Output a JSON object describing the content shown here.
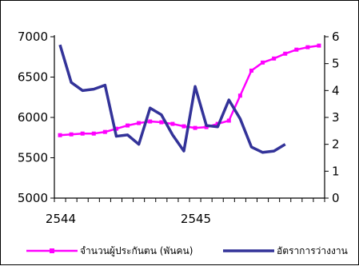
{
  "chart_data": {
    "type": "line",
    "title": "",
    "xlabel": "",
    "x_tick_labels": [
      {
        "label": "2544",
        "index": 0
      },
      {
        "label": "2545",
        "index": 12
      }
    ],
    "point_count": 24,
    "left_axis": {
      "label": "",
      "ylim": [
        5000,
        7000
      ],
      "ticks": [
        5000,
        5500,
        6000,
        6500,
        7000
      ]
    },
    "right_axis": {
      "label": "",
      "ylim": [
        0,
        6
      ],
      "ticks": [
        0,
        1,
        2,
        3,
        4,
        5,
        6
      ]
    },
    "grid": false,
    "legend_position": "bottom",
    "series": [
      {
        "name": "จำนวนผู้ประกันตน (พันคน)",
        "axis": "left",
        "color": "#ff00ff",
        "marker": "square",
        "values": [
          5780,
          5790,
          5800,
          5800,
          5820,
          5860,
          5900,
          5930,
          5950,
          5940,
          5920,
          5890,
          5870,
          5880,
          5920,
          5960,
          6270,
          6580,
          6680,
          6730,
          6790,
          6840,
          6870,
          6890
        ]
      },
      {
        "name": "อัตราการว่างงาน",
        "axis": "right",
        "color": "#333399",
        "marker": "none",
        "values": [
          5.7,
          4.3,
          4.0,
          4.05,
          4.2,
          2.3,
          2.35,
          2.0,
          3.35,
          3.1,
          2.35,
          1.75,
          4.15,
          2.7,
          2.65,
          3.65,
          2.95,
          1.9,
          1.7,
          1.75,
          2.0
        ]
      }
    ]
  }
}
